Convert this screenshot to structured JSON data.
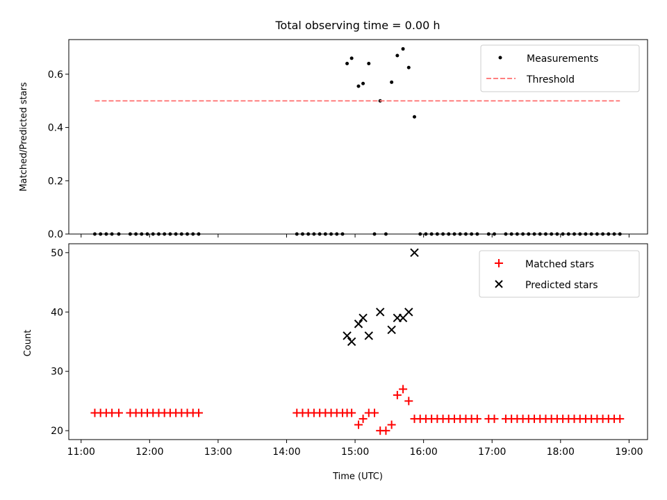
{
  "chart_data": [
    {
      "type": "scatter",
      "title": "Total observing time = 0.00 h",
      "xlabel": "",
      "ylabel": "Matched/Predicted stars",
      "xlim_hours": [
        10.82,
        19.27
      ],
      "ylim": [
        0,
        0.73
      ],
      "yticks": [
        0.0,
        0.2,
        0.4,
        0.6
      ],
      "ytick_labels": [
        "0.0",
        "0.2",
        "0.4",
        "0.6"
      ],
      "xtick_labels_shown": false,
      "legend": {
        "position": "top-right",
        "entries": [
          "Measurements",
          "Threshold"
        ]
      },
      "series": [
        {
          "name": "Measurements",
          "marker": "dot",
          "color": "#000000",
          "points": [
            [
              "11:12",
              0
            ],
            [
              "11:17",
              0
            ],
            [
              "11:22",
              0
            ],
            [
              "11:27",
              0
            ],
            [
              "11:33",
              0
            ],
            [
              "11:43",
              0
            ],
            [
              "11:48",
              0
            ],
            [
              "11:53",
              0
            ],
            [
              "11:58",
              0
            ],
            [
              "12:03",
              0
            ],
            [
              "12:08",
              0
            ],
            [
              "12:13",
              0
            ],
            [
              "12:18",
              0
            ],
            [
              "12:23",
              0
            ],
            [
              "12:28",
              0
            ],
            [
              "12:33",
              0
            ],
            [
              "12:38",
              0
            ],
            [
              "12:43",
              0
            ],
            [
              "14:09",
              0
            ],
            [
              "14:14",
              0
            ],
            [
              "14:19",
              0
            ],
            [
              "14:24",
              0
            ],
            [
              "14:29",
              0
            ],
            [
              "14:34",
              0
            ],
            [
              "14:39",
              0
            ],
            [
              "14:44",
              0
            ],
            [
              "14:49",
              0
            ],
            [
              "14:53",
              0.64
            ],
            [
              "14:57",
              0.66
            ],
            [
              "15:03",
              0.555
            ],
            [
              "15:07",
              0.565
            ],
            [
              "15:12",
              0.64
            ],
            [
              "15:17",
              0
            ],
            [
              "15:22",
              0.5
            ],
            [
              "15:27",
              0
            ],
            [
              "15:32",
              0.57
            ],
            [
              "15:37",
              0.67
            ],
            [
              "15:42",
              0.695
            ],
            [
              "15:47",
              0.625
            ],
            [
              "15:52",
              0.44
            ],
            [
              "15:57",
              0
            ],
            [
              "16:02",
              0
            ],
            [
              "16:07",
              0
            ],
            [
              "16:12",
              0
            ],
            [
              "16:17",
              0
            ],
            [
              "16:22",
              0
            ],
            [
              "16:27",
              0
            ],
            [
              "16:32",
              0
            ],
            [
              "16:37",
              0
            ],
            [
              "16:42",
              0
            ],
            [
              "16:47",
              0
            ],
            [
              "16:57",
              0
            ],
            [
              "17:02",
              0
            ],
            [
              "17:12",
              0
            ],
            [
              "17:17",
              0
            ],
            [
              "17:22",
              0
            ],
            [
              "17:27",
              0
            ],
            [
              "17:32",
              0
            ],
            [
              "17:37",
              0
            ],
            [
              "17:42",
              0
            ],
            [
              "17:47",
              0
            ],
            [
              "17:52",
              0
            ],
            [
              "17:57",
              0
            ],
            [
              "18:02",
              0
            ],
            [
              "18:07",
              0
            ],
            [
              "18:12",
              0
            ],
            [
              "18:17",
              0
            ],
            [
              "18:22",
              0
            ],
            [
              "18:27",
              0
            ],
            [
              "18:32",
              0
            ],
            [
              "18:37",
              0
            ],
            [
              "18:42",
              0
            ],
            [
              "18:47",
              0
            ],
            [
              "18:52",
              0
            ]
          ]
        },
        {
          "name": "Threshold",
          "style": "dashed",
          "color": "#ff7f7f",
          "points": [
            [
              "11:12",
              0.5
            ],
            [
              "18:52",
              0.5
            ]
          ]
        }
      ]
    },
    {
      "type": "scatter",
      "title": "",
      "xlabel": "Time (UTC)",
      "ylabel": "Count",
      "xlim_hours": [
        10.82,
        19.27
      ],
      "ylim": [
        18.5,
        51.5
      ],
      "yticks": [
        20,
        30,
        40,
        50
      ],
      "ytick_labels": [
        "20",
        "30",
        "40",
        "50"
      ],
      "xticks_hours": [
        11,
        12,
        13,
        14,
        15,
        16,
        17,
        18,
        19
      ],
      "xtick_labels": [
        "11:00",
        "12:00",
        "13:00",
        "14:00",
        "15:00",
        "16:00",
        "17:00",
        "18:00",
        "19:00"
      ],
      "legend": {
        "position": "top-right",
        "entries": [
          "Matched stars",
          "Predicted stars"
        ]
      },
      "series": [
        {
          "name": "Matched stars",
          "marker": "plus",
          "color": "#ff0000",
          "points": [
            [
              "11:12",
              23
            ],
            [
              "11:17",
              23
            ],
            [
              "11:22",
              23
            ],
            [
              "11:27",
              23
            ],
            [
              "11:33",
              23
            ],
            [
              "11:43",
              23
            ],
            [
              "11:48",
              23
            ],
            [
              "11:53",
              23
            ],
            [
              "11:58",
              23
            ],
            [
              "12:03",
              23
            ],
            [
              "12:08",
              23
            ],
            [
              "12:13",
              23
            ],
            [
              "12:18",
              23
            ],
            [
              "12:23",
              23
            ],
            [
              "12:28",
              23
            ],
            [
              "12:33",
              23
            ],
            [
              "12:38",
              23
            ],
            [
              "12:43",
              23
            ],
            [
              "14:09",
              23
            ],
            [
              "14:14",
              23
            ],
            [
              "14:19",
              23
            ],
            [
              "14:24",
              23
            ],
            [
              "14:29",
              23
            ],
            [
              "14:34",
              23
            ],
            [
              "14:39",
              23
            ],
            [
              "14:44",
              23
            ],
            [
              "14:49",
              23
            ],
            [
              "14:53",
              23
            ],
            [
              "14:57",
              23
            ],
            [
              "15:03",
              21
            ],
            [
              "15:07",
              22
            ],
            [
              "15:12",
              23
            ],
            [
              "15:17",
              23
            ],
            [
              "15:22",
              20
            ],
            [
              "15:27",
              20
            ],
            [
              "15:32",
              21
            ],
            [
              "15:37",
              26
            ],
            [
              "15:42",
              27
            ],
            [
              "15:47",
              25
            ],
            [
              "15:52",
              22
            ],
            [
              "15:57",
              22
            ],
            [
              "16:02",
              22
            ],
            [
              "16:07",
              22
            ],
            [
              "16:12",
              22
            ],
            [
              "16:17",
              22
            ],
            [
              "16:22",
              22
            ],
            [
              "16:27",
              22
            ],
            [
              "16:32",
              22
            ],
            [
              "16:37",
              22
            ],
            [
              "16:42",
              22
            ],
            [
              "16:47",
              22
            ],
            [
              "16:57",
              22
            ],
            [
              "17:02",
              22
            ],
            [
              "17:12",
              22
            ],
            [
              "17:17",
              22
            ],
            [
              "17:22",
              22
            ],
            [
              "17:27",
              22
            ],
            [
              "17:32",
              22
            ],
            [
              "17:37",
              22
            ],
            [
              "17:42",
              22
            ],
            [
              "17:47",
              22
            ],
            [
              "17:52",
              22
            ],
            [
              "17:57",
              22
            ],
            [
              "18:02",
              22
            ],
            [
              "18:07",
              22
            ],
            [
              "18:12",
              22
            ],
            [
              "18:17",
              22
            ],
            [
              "18:22",
              22
            ],
            [
              "18:27",
              22
            ],
            [
              "18:32",
              22
            ],
            [
              "18:37",
              22
            ],
            [
              "18:42",
              22
            ],
            [
              "18:47",
              22
            ],
            [
              "18:52",
              22
            ]
          ]
        },
        {
          "name": "Predicted stars",
          "marker": "x",
          "color": "#000000",
          "points": [
            [
              "14:53",
              36
            ],
            [
              "14:57",
              35
            ],
            [
              "15:03",
              38
            ],
            [
              "15:07",
              39
            ],
            [
              "15:12",
              36
            ],
            [
              "15:22",
              40
            ],
            [
              "15:32",
              37
            ],
            [
              "15:37",
              39
            ],
            [
              "15:42",
              39
            ],
            [
              "15:47",
              40
            ],
            [
              "15:52",
              50
            ]
          ]
        }
      ]
    }
  ]
}
